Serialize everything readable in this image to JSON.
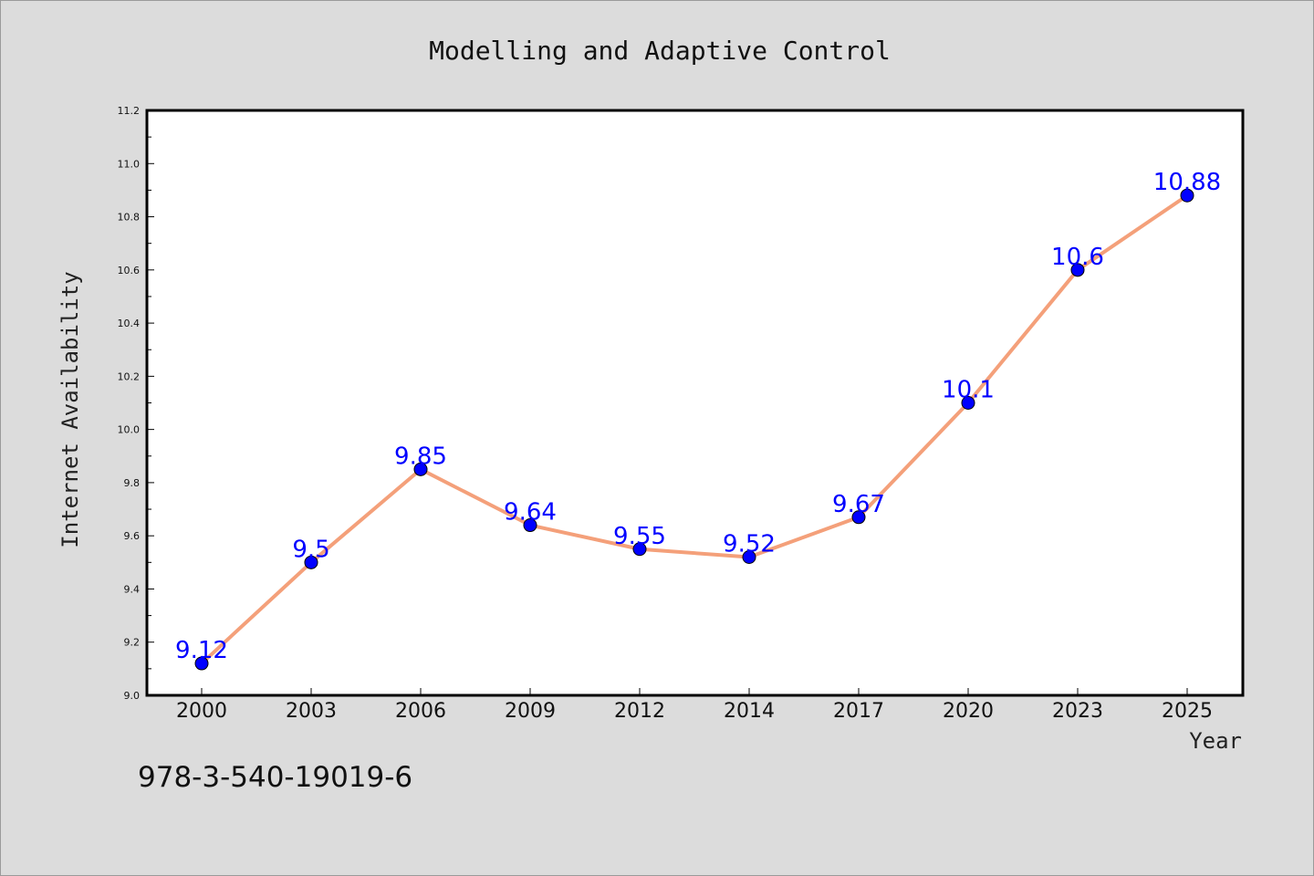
{
  "chart_data": {
    "type": "line",
    "title": "Modelling and Adaptive Control",
    "xlabel": "Year",
    "ylabel": "Internet Availability",
    "categories": [
      "2000",
      "2003",
      "2006",
      "2009",
      "2012",
      "2014",
      "2017",
      "2020",
      "2023",
      "2025"
    ],
    "series": [
      {
        "values": [
          9.12,
          9.5,
          9.85,
          9.64,
          9.55,
          9.52,
          9.67,
          10.1,
          10.6,
          10.88
        ],
        "labels": [
          "9.12",
          "9.5",
          "9.85",
          "9.64",
          "9.55",
          "9.52",
          "9.67",
          "10.1",
          "10.6",
          "10.88"
        ],
        "line_color": "#f4a07a",
        "marker_color": "#0000ff"
      }
    ],
    "ylim": [
      9.0,
      11.2
    ],
    "yticks": [
      "9.0",
      "9.2",
      "9.4",
      "9.6",
      "9.8",
      "10.0",
      "10.2",
      "10.4",
      "10.6",
      "10.8",
      "11.0",
      "11.2"
    ],
    "grid": false,
    "legend": "none"
  },
  "footer": {
    "code": "978-3-540-19019-6"
  },
  "colors": {
    "background": "#dcdcdc",
    "plot_background": "#ffffff"
  }
}
